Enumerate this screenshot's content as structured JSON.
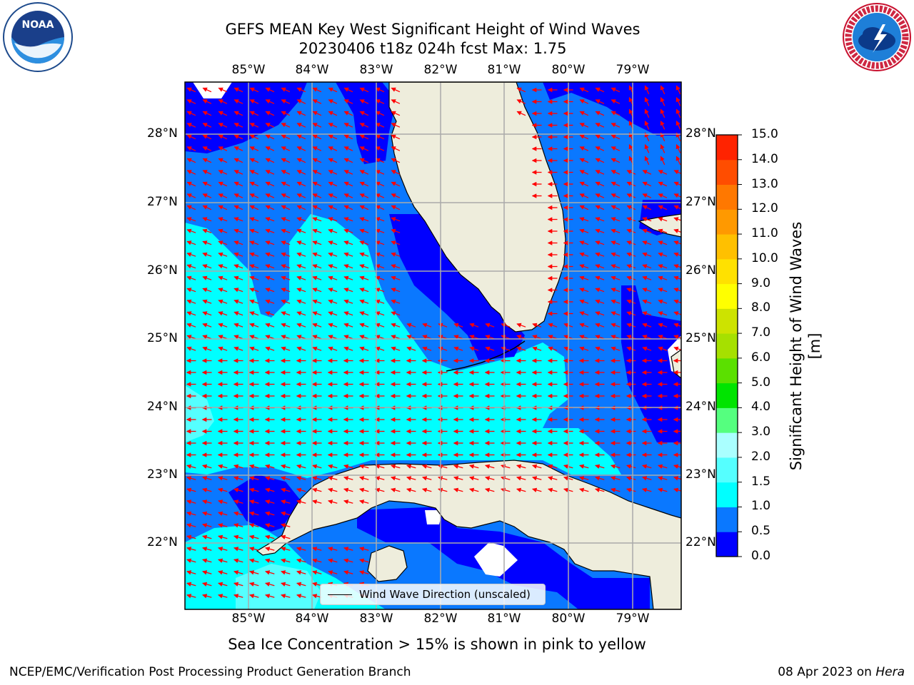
{
  "title": {
    "line1": "GEFS MEAN Key West Significant Height of Wind Waves",
    "line2": "20230406 t18z 024h fcst   Max: 1.75"
  },
  "map": {
    "lon_labels": [
      "85°W",
      "84°W",
      "83°W",
      "82°W",
      "81°W",
      "80°W",
      "79°W"
    ],
    "lat_labels": [
      "28°N",
      "27°N",
      "26°N",
      "25°N",
      "24°N",
      "23°N",
      "22°N"
    ],
    "legend_label": "Wind Wave Direction (unscaled)",
    "arrow_color": "#ff0000",
    "land_color": "#eeeddc"
  },
  "colorbar": {
    "ticks": [
      "15.0",
      "14.0",
      "13.0",
      "12.0",
      "11.0",
      "10.0",
      "9.0",
      "8.0",
      "7.0",
      "6.0",
      "5.0",
      "4.0",
      "3.0",
      "2.0",
      "1.5",
      "1.0",
      "0.5",
      "0.0"
    ],
    "colors": [
      "#0000ff",
      "#0a78ff",
      "#00ffff",
      "#55ffff",
      "#aaffff",
      "#55ff7f",
      "#00e400",
      "#5be000",
      "#a6e000",
      "#cde300",
      "#ffff00",
      "#ffe100",
      "#ffc000",
      "#ff9900",
      "#ff7800",
      "#ff4d00",
      "#ff2300",
      "#ff0000"
    ],
    "label": "Significant Height of Wind Waves [m]"
  },
  "caption": "Sea Ice Concentration > 15% is shown in pink to yellow",
  "footer": {
    "left": "NCEP/EMC/Verification Post Processing Product Generation Branch",
    "date": "08 Apr 2023 on ",
    "host": "Hera"
  },
  "logos": {
    "noaa": "NOAA",
    "nws": "NATIONAL WEATHER SERVICE"
  }
}
